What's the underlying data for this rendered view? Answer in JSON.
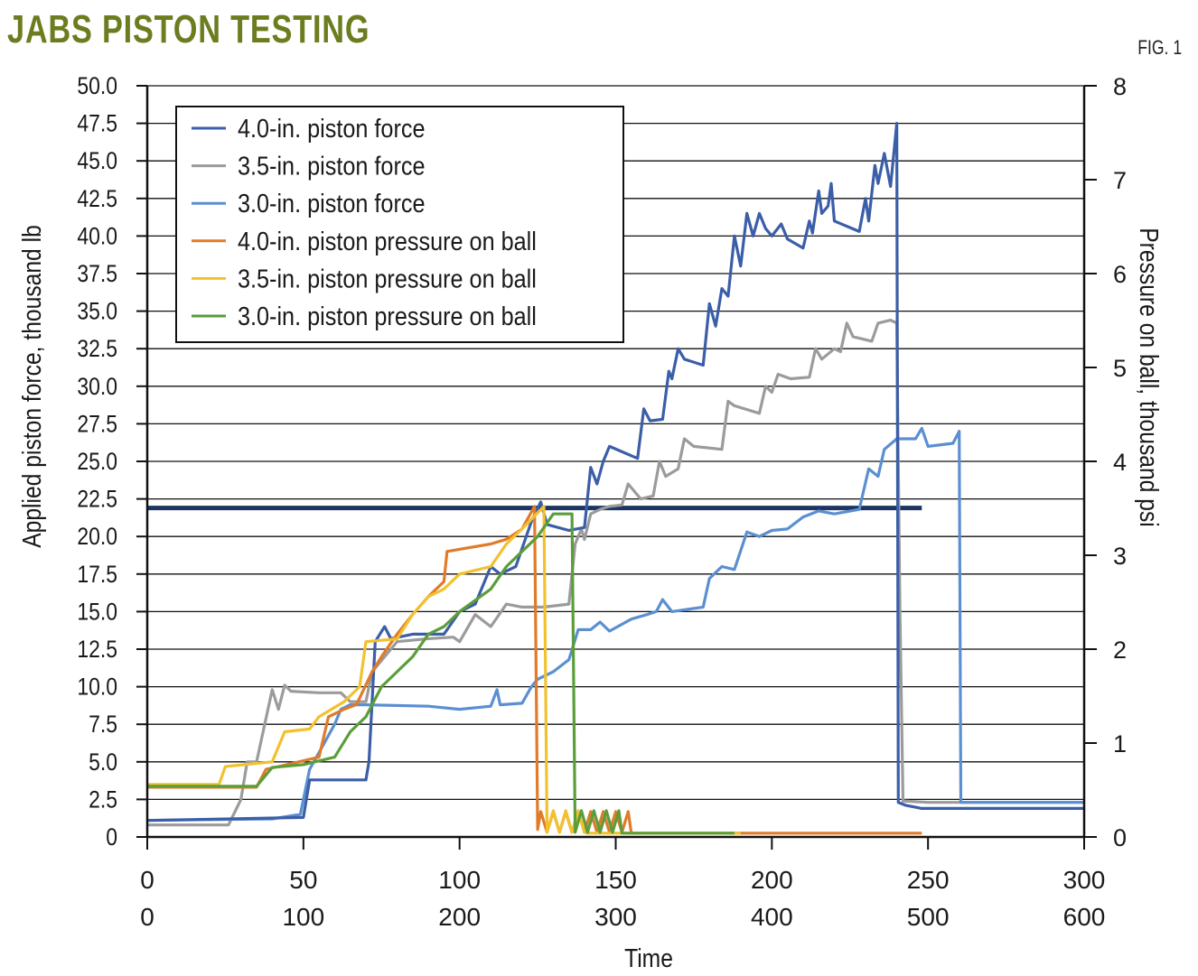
{
  "title": "JABS PISTON TESTING",
  "figure_label": "FIG. 1",
  "chart_data": {
    "type": "line",
    "xlabel": "Time",
    "x_tick_labels_primary": [
      "0",
      "50",
      "100",
      "150",
      "200",
      "250",
      "300"
    ],
    "x_tick_labels_secondary": [
      "0",
      "100",
      "200",
      "300",
      "400",
      "500",
      "600"
    ],
    "xlim": [
      0,
      300
    ],
    "ylabel": "Applied piston force, thousand lb",
    "ylim": [
      0,
      50
    ],
    "y_ticks": [
      "0",
      "2.5",
      "5.0",
      "7.5",
      "10.0",
      "12.5",
      "15.0",
      "17.5",
      "20.0",
      "22.5",
      "25.0",
      "27.5",
      "30.0",
      "32.5",
      "35.0",
      "37.5",
      "40.0",
      "42.5",
      "45.0",
      "47.5",
      "50.0"
    ],
    "y2label": "Pressure on ball, thousand psi",
    "y2lim": [
      0,
      8
    ],
    "y2_ticks": [
      "0",
      "1",
      "2",
      "3",
      "4",
      "5",
      "6",
      "7",
      "8"
    ],
    "grid": true,
    "legend_position": "top-left",
    "series": [
      {
        "name": "4.0-in. piston force",
        "axis": "left",
        "color": "#3b5ea8",
        "points": [
          [
            0,
            1.1
          ],
          [
            50,
            1.3
          ],
          [
            52,
            3.8
          ],
          [
            70,
            3.8
          ],
          [
            71,
            5
          ],
          [
            73,
            13
          ],
          [
            76,
            14
          ],
          [
            78,
            13.2
          ],
          [
            85,
            13.5
          ],
          [
            95,
            13.5
          ],
          [
            100,
            15
          ],
          [
            105,
            15.5
          ],
          [
            110,
            18
          ],
          [
            113,
            17.5
          ],
          [
            118,
            18
          ],
          [
            123,
            21
          ],
          [
            126,
            22.3
          ],
          [
            128,
            20.8
          ],
          [
            135,
            20.4
          ],
          [
            140,
            20.6
          ],
          [
            142,
            24.6
          ],
          [
            144,
            23.5
          ],
          [
            146,
            25
          ],
          [
            148,
            26
          ],
          [
            157,
            25.2
          ],
          [
            159,
            28.5
          ],
          [
            161,
            27.7
          ],
          [
            165,
            27.8
          ],
          [
            167,
            31
          ],
          [
            168,
            30.5
          ],
          [
            170,
            32.5
          ],
          [
            172,
            31.8
          ],
          [
            178,
            31.4
          ],
          [
            180,
            35.5
          ],
          [
            182,
            34
          ],
          [
            184,
            36.5
          ],
          [
            186,
            36
          ],
          [
            188,
            40
          ],
          [
            190,
            38
          ],
          [
            192,
            41.5
          ],
          [
            194,
            40
          ],
          [
            196,
            41.5
          ],
          [
            198,
            40.5
          ],
          [
            200,
            40
          ],
          [
            203,
            40.8
          ],
          [
            205,
            39.8
          ],
          [
            210,
            39.2
          ],
          [
            212,
            41
          ],
          [
            213,
            40.2
          ],
          [
            215,
            43
          ],
          [
            216,
            41.5
          ],
          [
            218,
            42
          ],
          [
            219,
            43.5
          ],
          [
            220,
            41
          ],
          [
            228,
            40.3
          ],
          [
            230,
            42.5
          ],
          [
            231,
            41
          ],
          [
            233,
            44.7
          ],
          [
            234,
            43.5
          ],
          [
            236,
            45.5
          ],
          [
            238,
            43.3
          ],
          [
            240,
            47.5
          ],
          [
            240.5,
            2.3
          ],
          [
            243,
            2.1
          ],
          [
            248,
            1.9
          ],
          [
            300,
            1.9
          ]
        ]
      },
      {
        "name": "3.5-in. piston force",
        "axis": "left",
        "color": "#9b9b9b",
        "points": [
          [
            0,
            0.8
          ],
          [
            26,
            0.8
          ],
          [
            30,
            2.5
          ],
          [
            32,
            5
          ],
          [
            35,
            5
          ],
          [
            40,
            9.8
          ],
          [
            42,
            8.5
          ],
          [
            44,
            10.1
          ],
          [
            46,
            9.7
          ],
          [
            55,
            9.6
          ],
          [
            62,
            9.6
          ],
          [
            65,
            9
          ],
          [
            70,
            9
          ],
          [
            72,
            11
          ],
          [
            76,
            12
          ],
          [
            80,
            13
          ],
          [
            90,
            13.2
          ],
          [
            98,
            13.3
          ],
          [
            100,
            13
          ],
          [
            105,
            14.8
          ],
          [
            110,
            14
          ],
          [
            115,
            15.5
          ],
          [
            120,
            15.3
          ],
          [
            127,
            15.3
          ],
          [
            135,
            15.5
          ],
          [
            137,
            19.5
          ],
          [
            139,
            20.5
          ],
          [
            140,
            19.8
          ],
          [
            142,
            21.5
          ],
          [
            145,
            21.8
          ],
          [
            148,
            22
          ],
          [
            152,
            22.1
          ],
          [
            154,
            23.5
          ],
          [
            158,
            22.5
          ],
          [
            162,
            22.7
          ],
          [
            164,
            25
          ],
          [
            166,
            24
          ],
          [
            170,
            24.5
          ],
          [
            172,
            26.5
          ],
          [
            175,
            26
          ],
          [
            184,
            25.8
          ],
          [
            186,
            29
          ],
          [
            188,
            28.7
          ],
          [
            196,
            28.2
          ],
          [
            198,
            30
          ],
          [
            200,
            29.6
          ],
          [
            202,
            30.8
          ],
          [
            206,
            30.5
          ],
          [
            212,
            30.6
          ],
          [
            214,
            32.5
          ],
          [
            216,
            31.8
          ],
          [
            220,
            32.5
          ],
          [
            222,
            32.3
          ],
          [
            224,
            34.2
          ],
          [
            226,
            33.3
          ],
          [
            232,
            33
          ],
          [
            234,
            34.2
          ],
          [
            238,
            34.4
          ],
          [
            240,
            34.2
          ],
          [
            241,
            15
          ],
          [
            242,
            2.4
          ],
          [
            250,
            2.3
          ],
          [
            300,
            2.3
          ]
        ]
      },
      {
        "name": "3.0-in. piston force",
        "axis": "left",
        "color": "#5b8fd2",
        "points": [
          [
            0,
            1.1
          ],
          [
            40,
            1.2
          ],
          [
            49,
            1.5
          ],
          [
            52,
            4.5
          ],
          [
            56,
            6
          ],
          [
            60,
            7.5
          ],
          [
            62,
            8.5
          ],
          [
            65,
            8.8
          ],
          [
            70,
            8.8
          ],
          [
            90,
            8.7
          ],
          [
            100,
            8.5
          ],
          [
            110,
            8.7
          ],
          [
            112,
            9.8
          ],
          [
            113,
            8.8
          ],
          [
            120,
            8.9
          ],
          [
            123,
            10
          ],
          [
            125,
            10.5
          ],
          [
            130,
            11
          ],
          [
            135,
            11.8
          ],
          [
            138,
            13.8
          ],
          [
            142,
            13.8
          ],
          [
            145,
            14.3
          ],
          [
            148,
            13.7
          ],
          [
            155,
            14.5
          ],
          [
            160,
            14.8
          ],
          [
            163,
            15
          ],
          [
            165,
            15.8
          ],
          [
            168,
            15
          ],
          [
            178,
            15.3
          ],
          [
            180,
            17.2
          ],
          [
            184,
            18
          ],
          [
            188,
            17.8
          ],
          [
            192,
            20.3
          ],
          [
            196,
            20
          ],
          [
            200,
            20.4
          ],
          [
            205,
            20.5
          ],
          [
            210,
            21.3
          ],
          [
            215,
            21.7
          ],
          [
            220,
            21.5
          ],
          [
            228,
            21.8
          ],
          [
            231,
            24.5
          ],
          [
            234,
            24
          ],
          [
            236,
            25.8
          ],
          [
            240,
            26.5
          ],
          [
            246,
            26.5
          ],
          [
            248,
            27.2
          ],
          [
            250,
            26
          ],
          [
            258,
            26.2
          ],
          [
            260,
            27
          ],
          [
            260.5,
            2.3
          ],
          [
            300,
            2.3
          ]
        ]
      },
      {
        "name": "4.0-in. piston pressure on ball",
        "axis": "right",
        "color": "#e07b2a",
        "points": [
          [
            0,
            0.53
          ],
          [
            35,
            0.53
          ],
          [
            38,
            0.72
          ],
          [
            42,
            0.75
          ],
          [
            55,
            0.85
          ],
          [
            58,
            1.28
          ],
          [
            63,
            1.36
          ],
          [
            67,
            1.41
          ],
          [
            72,
            1.76
          ],
          [
            75,
            1.92
          ],
          [
            80,
            2.16
          ],
          [
            85,
            2.37
          ],
          [
            90,
            2.56
          ],
          [
            95,
            2.72
          ],
          [
            96,
            3.04
          ],
          [
            110,
            3.12
          ],
          [
            115,
            3.17
          ],
          [
            120,
            3.28
          ],
          [
            124,
            3.52
          ],
          [
            125,
            0.08
          ],
          [
            126,
            0.27
          ],
          [
            128,
            0.05
          ],
          [
            130,
            0.27
          ],
          [
            132,
            0.05
          ],
          [
            134,
            0.27
          ],
          [
            136,
            0.05
          ],
          [
            138,
            0.27
          ],
          [
            140,
            0.05
          ],
          [
            142,
            0.27
          ],
          [
            144,
            0.05
          ],
          [
            146,
            0.27
          ],
          [
            148,
            0.05
          ],
          [
            150,
            0.27
          ],
          [
            152,
            0.05
          ],
          [
            154,
            0.27
          ],
          [
            155,
            0.04
          ],
          [
            248,
            0.04
          ]
        ]
      },
      {
        "name": "3.5-in. piston pressure on ball",
        "axis": "right",
        "color": "#f2c12e",
        "points": [
          [
            0,
            0.56
          ],
          [
            23,
            0.56
          ],
          [
            25,
            0.75
          ],
          [
            40,
            0.8
          ],
          [
            44,
            1.12
          ],
          [
            52,
            1.15
          ],
          [
            55,
            1.28
          ],
          [
            63,
            1.44
          ],
          [
            68,
            1.6
          ],
          [
            70,
            2.08
          ],
          [
            80,
            2.11
          ],
          [
            85,
            2.37
          ],
          [
            90,
            2.56
          ],
          [
            95,
            2.64
          ],
          [
            100,
            2.8
          ],
          [
            110,
            2.88
          ],
          [
            115,
            3.12
          ],
          [
            120,
            3.28
          ],
          [
            127,
            3.52
          ],
          [
            128,
            0.05
          ],
          [
            130,
            0.28
          ],
          [
            132,
            0.05
          ],
          [
            134,
            0.28
          ],
          [
            136,
            0.05
          ],
          [
            138,
            0.28
          ],
          [
            140,
            0.05
          ],
          [
            141,
            0.04
          ],
          [
            190,
            0.04
          ]
        ]
      },
      {
        "name": "3.0-in. piston pressure on ball",
        "axis": "right",
        "color": "#5a9e3a",
        "points": [
          [
            0,
            0.54
          ],
          [
            35,
            0.54
          ],
          [
            40,
            0.74
          ],
          [
            50,
            0.77
          ],
          [
            60,
            0.85
          ],
          [
            65,
            1.12
          ],
          [
            70,
            1.28
          ],
          [
            75,
            1.6
          ],
          [
            80,
            1.76
          ],
          [
            85,
            1.92
          ],
          [
            90,
            2.16
          ],
          [
            95,
            2.24
          ],
          [
            100,
            2.4
          ],
          [
            110,
            2.64
          ],
          [
            115,
            2.88
          ],
          [
            120,
            3.04
          ],
          [
            125,
            3.2
          ],
          [
            130,
            3.44
          ],
          [
            136,
            3.44
          ],
          [
            137,
            0.05
          ],
          [
            139,
            0.28
          ],
          [
            141,
            0.05
          ],
          [
            143,
            0.28
          ],
          [
            145,
            0.05
          ],
          [
            147,
            0.28
          ],
          [
            149,
            0.05
          ],
          [
            151,
            0.28
          ],
          [
            152,
            0.04
          ],
          [
            188,
            0.04
          ]
        ]
      },
      {
        "axis": "left",
        "color": "#1e3462",
        "points": [
          [
            0,
            21.9
          ],
          [
            248,
            21.9
          ]
        ]
      }
    ]
  }
}
